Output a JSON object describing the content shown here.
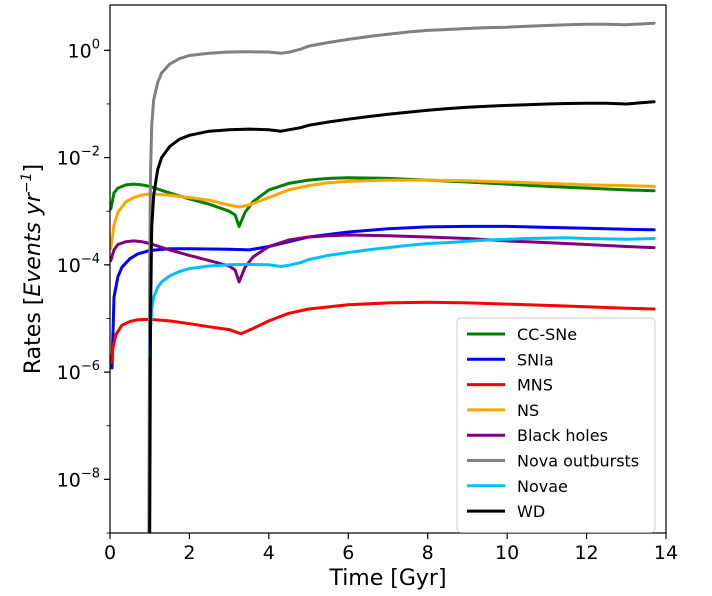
{
  "chart_data": {
    "type": "line",
    "title": "",
    "xlabel": "Time [Gyr]",
    "ylabel_prefix": "Rates [",
    "ylabel_italic": "Events yr",
    "ylabel_sup": "−1",
    "ylabel_suffix": "]",
    "x_scale": "linear",
    "y_scale": "log",
    "xlim": [
      0,
      14
    ],
    "ylim": [
      1e-09,
      7
    ],
    "xticks": [
      0,
      2,
      4,
      6,
      8,
      10,
      12,
      14
    ],
    "xtick_labels": [
      "0",
      "2",
      "4",
      "6",
      "8",
      "10",
      "12",
      "14"
    ],
    "yticks": [
      1e-08,
      1e-06,
      0.0001,
      0.01,
      1
    ],
    "ytick_labels": [
      {
        "base": "10",
        "exp": "−8"
      },
      {
        "base": "10",
        "exp": "−6"
      },
      {
        "base": "10",
        "exp": "−4"
      },
      {
        "base": "10",
        "exp": "−2"
      },
      {
        "base": "10",
        "exp": "0"
      }
    ],
    "grid": false,
    "legend_position": "lower-right",
    "series": [
      {
        "name": "CC-SNe",
        "color": "#008000",
        "x": [
          0.02,
          0.1,
          0.2,
          0.4,
          0.6,
          0.8,
          1.0,
          1.5,
          2.0,
          2.5,
          3.0,
          3.15,
          3.25,
          3.4,
          3.6,
          4.0,
          4.5,
          5.0,
          5.5,
          6.0,
          7.0,
          8.0,
          9.0,
          10.0,
          11.0,
          12.0,
          13.0,
          13.7
        ],
        "y": [
          0.0011,
          0.0022,
          0.0027,
          0.0031,
          0.0032,
          0.0031,
          0.0029,
          0.0022,
          0.0017,
          0.00135,
          0.001,
          0.00085,
          0.00052,
          0.00095,
          0.0015,
          0.0025,
          0.0033,
          0.0038,
          0.0041,
          0.0042,
          0.0041,
          0.0038,
          0.0035,
          0.0032,
          0.0029,
          0.0027,
          0.0025,
          0.0024
        ]
      },
      {
        "name": "SNIa",
        "color": "#0000ff",
        "x": [
          0.05,
          0.1,
          0.2,
          0.3,
          0.5,
          0.7,
          1.0,
          1.5,
          2.0,
          3.0,
          3.5,
          4.0,
          4.5,
          5.0,
          6.0,
          7.0,
          8.0,
          9.0,
          10.0,
          11.0,
          12.0,
          13.0,
          13.7
        ],
        "y": [
          1.2e-06,
          2.5e-05,
          6e-05,
          9e-05,
          0.00013,
          0.00016,
          0.000185,
          0.0002,
          0.0002,
          0.000195,
          0.00019,
          0.00022,
          0.00027,
          0.00033,
          0.00041,
          0.00047,
          0.00051,
          0.00052,
          0.00052,
          0.0005,
          0.00048,
          0.00046,
          0.00045
        ]
      },
      {
        "name": "MNS",
        "color": "#ff0000",
        "x": [
          0.03,
          0.08,
          0.15,
          0.3,
          0.5,
          0.7,
          1.0,
          1.5,
          2.0,
          2.5,
          3.0,
          3.2,
          3.3,
          3.6,
          4.0,
          4.5,
          5.0,
          6.0,
          7.0,
          8.0,
          9.0,
          10.0,
          11.0,
          12.0,
          13.0,
          13.7
        ],
        "y": [
          1.5e-06,
          3e-06,
          5e-06,
          7.5e-06,
          8.8e-06,
          9.5e-06,
          9.6e-06,
          9e-06,
          8e-06,
          7e-06,
          6.2e-06,
          5.5e-06,
          5.2e-06,
          6.5e-06,
          9e-06,
          1.25e-05,
          1.5e-05,
          1.8e-05,
          1.95e-05,
          2e-05,
          1.95e-05,
          1.85e-05,
          1.75e-05,
          1.65e-05,
          1.55e-05,
          1.5e-05
        ]
      },
      {
        "name": "NS",
        "color": "#ffa500",
        "x": [
          0.02,
          0.1,
          0.2,
          0.4,
          0.6,
          0.8,
          1.0,
          1.5,
          2.0,
          2.5,
          3.0,
          3.25,
          3.5,
          4.0,
          4.5,
          5.0,
          5.5,
          6.0,
          7.0,
          8.0,
          9.0,
          10.0,
          11.0,
          12.0,
          13.0,
          13.7
        ],
        "y": [
          0.0002,
          0.00055,
          0.00095,
          0.0015,
          0.0018,
          0.002,
          0.0021,
          0.002,
          0.0018,
          0.0016,
          0.0013,
          0.0012,
          0.0013,
          0.0018,
          0.0025,
          0.003,
          0.0034,
          0.0036,
          0.0038,
          0.0038,
          0.0037,
          0.0035,
          0.0033,
          0.0031,
          0.003,
          0.0029
        ]
      },
      {
        "name": "Black holes",
        "color": "#800080",
        "x": [
          0.02,
          0.1,
          0.2,
          0.4,
          0.6,
          0.8,
          1.0,
          1.5,
          2.0,
          2.5,
          3.0,
          3.15,
          3.25,
          3.4,
          3.6,
          4.0,
          4.5,
          5.0,
          5.5,
          6.0,
          7.0,
          8.0,
          9.0,
          10.0,
          11.0,
          12.0,
          13.0,
          13.7
        ],
        "y": [
          0.00012,
          0.00019,
          0.00024,
          0.00027,
          0.00028,
          0.00027,
          0.00025,
          0.00019,
          0.00015,
          0.00012,
          9.5e-05,
          8e-05,
          4.8e-05,
          9e-05,
          0.00014,
          0.00022,
          0.00029,
          0.00033,
          0.00035,
          0.00036,
          0.00035,
          0.00033,
          0.00031,
          0.00028,
          0.00026,
          0.00024,
          0.00022,
          0.00021
        ]
      },
      {
        "name": "Nova outbursts",
        "color": "#808080",
        "x": [
          0.98,
          1.0,
          1.02,
          1.05,
          1.1,
          1.2,
          1.3,
          1.5,
          1.75,
          2.0,
          2.5,
          3.0,
          3.5,
          4.0,
          4.3,
          4.5,
          4.8,
          5.0,
          5.5,
          6.0,
          6.5,
          7.0,
          7.5,
          8.0,
          8.5,
          9.0,
          9.5,
          10.0,
          10.5,
          11.0,
          11.5,
          12.0,
          12.5,
          13.0,
          13.7
        ],
        "y": [
          1e-09,
          0.0001,
          0.005,
          0.04,
          0.12,
          0.25,
          0.38,
          0.55,
          0.7,
          0.8,
          0.88,
          0.93,
          0.94,
          0.93,
          0.88,
          0.92,
          1.05,
          1.2,
          1.4,
          1.6,
          1.8,
          2.0,
          2.2,
          2.35,
          2.45,
          2.55,
          2.65,
          2.7,
          2.8,
          2.9,
          3.0,
          3.05,
          3.05,
          3.0,
          3.2
        ]
      },
      {
        "name": "Novae",
        "color": "#00bfff",
        "x": [
          1.0,
          1.02,
          1.05,
          1.1,
          1.2,
          1.3,
          1.5,
          1.75,
          2.0,
          2.5,
          3.0,
          3.5,
          4.0,
          4.3,
          4.5,
          4.8,
          5.0,
          5.5,
          6.0,
          6.5,
          7.0,
          7.5,
          8.0,
          8.5,
          9.0,
          9.5,
          10.0,
          10.5,
          11.0,
          11.5,
          12.0,
          12.5,
          13.0,
          13.7
        ],
        "y": [
          2e-06,
          6e-06,
          1.5e-05,
          2.5e-05,
          3.8e-05,
          4.8e-05,
          6.2e-05,
          7.5e-05,
          8.5e-05,
          9.5e-05,
          0.0001,
          0.000102,
          0.0001,
          9.3e-05,
          9.8e-05,
          0.00011,
          0.000125,
          0.00015,
          0.00017,
          0.00019,
          0.00021,
          0.00023,
          0.00025,
          0.00026,
          0.000275,
          0.00029,
          0.0003,
          0.00031,
          0.000315,
          0.00032,
          0.00031,
          0.000305,
          0.0003,
          0.00031
        ]
      },
      {
        "name": "WD",
        "color": "#000000",
        "x": [
          1.0,
          1.02,
          1.05,
          1.1,
          1.2,
          1.3,
          1.5,
          1.75,
          2.0,
          2.5,
          3.0,
          3.5,
          4.0,
          4.3,
          4.5,
          4.8,
          5.0,
          5.5,
          6.0,
          6.5,
          7.0,
          7.5,
          8.0,
          8.5,
          9.0,
          9.5,
          10.0,
          10.5,
          11.0,
          11.5,
          12.0,
          12.5,
          13.0,
          13.7
        ],
        "y": [
          1e-09,
          1e-05,
          0.0005,
          0.002,
          0.006,
          0.01,
          0.016,
          0.022,
          0.026,
          0.031,
          0.033,
          0.034,
          0.033,
          0.031,
          0.033,
          0.036,
          0.04,
          0.046,
          0.052,
          0.058,
          0.064,
          0.07,
          0.076,
          0.082,
          0.087,
          0.091,
          0.094,
          0.097,
          0.1,
          0.102,
          0.103,
          0.103,
          0.1,
          0.11
        ]
      }
    ]
  }
}
